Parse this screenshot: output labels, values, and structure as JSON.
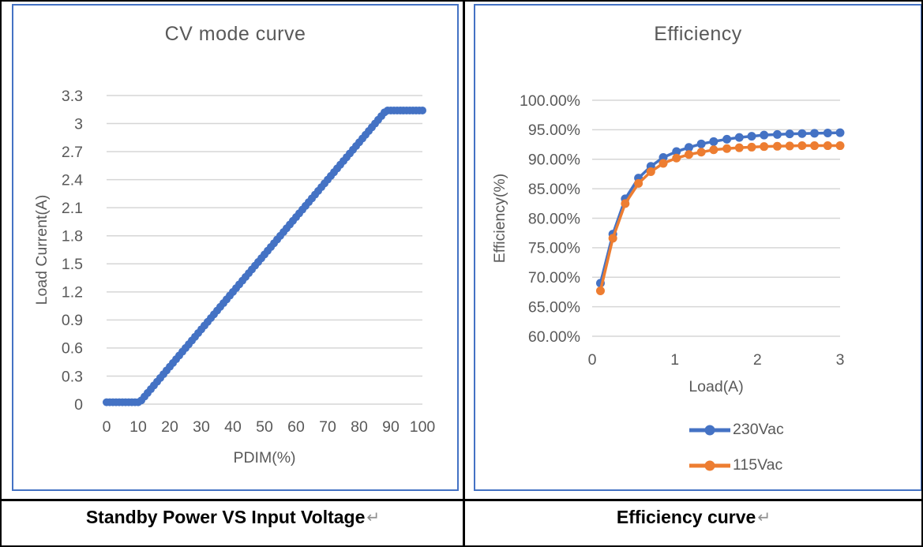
{
  "captions": {
    "left": "Standby Power VS Input Voltage",
    "right": "Efficiency curve",
    "return_mark": "↵"
  },
  "colors": {
    "accent_blue": "#4472C4",
    "accent_orange": "#ED7D31",
    "grid": "#D6D6D6",
    "text": "#595959",
    "chart_border": "#4472C4",
    "table_border": "#000000"
  },
  "chart_data": [
    {
      "type": "scatter",
      "title": "CV mode curve",
      "xlabel": "PDIM(%)",
      "ylabel": "Load Current(A)",
      "xlim": [
        0,
        100
      ],
      "ylim": [
        0,
        3.3
      ],
      "grid": true,
      "legend_position": "none",
      "xticks": {
        "values": [
          0,
          10,
          20,
          30,
          40,
          50,
          60,
          70,
          80,
          90,
          100
        ],
        "labels": [
          "0",
          "10",
          "20",
          "30",
          "40",
          "50",
          "60",
          "70",
          "80",
          "90",
          "100"
        ]
      },
      "yticks": {
        "values": [
          0,
          0.3,
          0.6,
          0.9,
          1.2,
          1.5,
          1.8,
          2.1,
          2.4,
          2.7,
          3,
          3.3
        ],
        "labels": [
          "0",
          "0.3",
          "0.6",
          "0.9",
          "1.2",
          "1.5",
          "1.8",
          "2.1",
          "2.4",
          "2.7",
          "3",
          "3.3"
        ]
      },
      "series": [
        {
          "name": "Load Current",
          "color": "#4472C4",
          "marker_only": true,
          "x": [
            0,
            1,
            2,
            3,
            4,
            5,
            6,
            7,
            8,
            9,
            10,
            11,
            12,
            13,
            14,
            15,
            16,
            17,
            18,
            19,
            20,
            21,
            22,
            23,
            24,
            25,
            26,
            27,
            28,
            29,
            30,
            31,
            32,
            33,
            34,
            35,
            36,
            37,
            38,
            39,
            40,
            41,
            42,
            43,
            44,
            45,
            46,
            47,
            48,
            49,
            50,
            51,
            52,
            53,
            54,
            55,
            56,
            57,
            58,
            59,
            60,
            61,
            62,
            63,
            64,
            65,
            66,
            67,
            68,
            69,
            70,
            71,
            72,
            73,
            74,
            75,
            76,
            77,
            78,
            79,
            80,
            81,
            82,
            83,
            84,
            85,
            86,
            87,
            88,
            89,
            90,
            91,
            92,
            93,
            94,
            95,
            96,
            97,
            98,
            99,
            100
          ],
          "y": [
            0.02,
            0.02,
            0.02,
            0.02,
            0.02,
            0.02,
            0.02,
            0.02,
            0.02,
            0.02,
            0.02,
            0.04,
            0.08,
            0.12,
            0.16,
            0.2,
            0.24,
            0.28,
            0.32,
            0.36,
            0.4,
            0.44,
            0.48,
            0.52,
            0.56,
            0.6,
            0.64,
            0.68,
            0.72,
            0.76,
            0.8,
            0.84,
            0.88,
            0.92,
            0.96,
            1,
            1.04,
            1.08,
            1.12,
            1.16,
            1.2,
            1.24,
            1.28,
            1.32,
            1.36,
            1.4,
            1.44,
            1.48,
            1.52,
            1.56,
            1.6,
            1.64,
            1.68,
            1.72,
            1.76,
            1.8,
            1.84,
            1.88,
            1.92,
            1.96,
            2,
            2.04,
            2.08,
            2.12,
            2.16,
            2.2,
            2.24,
            2.28,
            2.32,
            2.36,
            2.4,
            2.44,
            2.48,
            2.52,
            2.56,
            2.6,
            2.64,
            2.68,
            2.72,
            2.76,
            2.8,
            2.84,
            2.88,
            2.92,
            2.96,
            3,
            3.04,
            3.08,
            3.12,
            3.14,
            3.14,
            3.14,
            3.14,
            3.14,
            3.14,
            3.14,
            3.14,
            3.14,
            3.14,
            3.14,
            3.14
          ]
        }
      ]
    },
    {
      "type": "line",
      "title": "Efficiency",
      "xlabel": "Load(A)",
      "ylabel": "Efficiency(%)",
      "xlim": [
        0,
        3
      ],
      "ylim": [
        60,
        100
      ],
      "grid": true,
      "legend_position": "bottom",
      "xticks": {
        "values": [
          0,
          1,
          2,
          3
        ],
        "labels": [
          "0",
          "1",
          "2",
          "3"
        ]
      },
      "yticks": {
        "values": [
          60,
          65,
          70,
          75,
          80,
          85,
          90,
          95,
          100
        ],
        "labels": [
          "60.00%",
          "65.00%",
          "70.00%",
          "75.00%",
          "80.00%",
          "85.00%",
          "90.00%",
          "95.00%",
          "100.00%"
        ]
      },
      "series": [
        {
          "name": "230Vac",
          "color": "#4472C4",
          "marker_only": false,
          "x": [
            0.1,
            0.25,
            0.4,
            0.56,
            0.71,
            0.86,
            1.02,
            1.17,
            1.32,
            1.47,
            1.63,
            1.78,
            1.93,
            2.08,
            2.24,
            2.39,
            2.54,
            2.69,
            2.85,
            3.0
          ],
          "y": [
            69.0,
            77.3,
            83.3,
            86.8,
            88.8,
            90.3,
            91.3,
            92.0,
            92.6,
            93.0,
            93.4,
            93.7,
            93.9,
            94.1,
            94.2,
            94.3,
            94.35,
            94.4,
            94.45,
            94.5
          ]
        },
        {
          "name": "115Vac",
          "color": "#ED7D31",
          "marker_only": false,
          "x": [
            0.1,
            0.25,
            0.4,
            0.56,
            0.71,
            0.86,
            1.02,
            1.17,
            1.32,
            1.47,
            1.63,
            1.78,
            1.93,
            2.08,
            2.24,
            2.39,
            2.54,
            2.69,
            2.85,
            3.0
          ],
          "y": [
            67.7,
            76.6,
            82.5,
            85.9,
            87.9,
            89.3,
            90.2,
            90.8,
            91.2,
            91.6,
            91.8,
            91.95,
            92.05,
            92.15,
            92.2,
            92.25,
            92.3,
            92.3,
            92.3,
            92.3
          ]
        }
      ]
    }
  ]
}
